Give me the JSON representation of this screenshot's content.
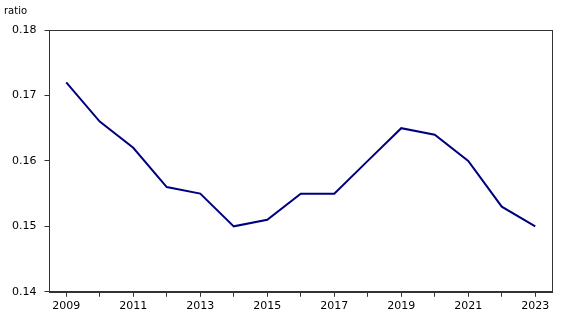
{
  "chart_data": {
    "type": "line",
    "y_label": "ratio",
    "categories": [
      "2009",
      null,
      "2011",
      null,
      "2013",
      null,
      "2015",
      null,
      "2017",
      null,
      "2019",
      null,
      "2021",
      null,
      "2023"
    ],
    "values": [
      0.172,
      0.166,
      0.162,
      0.156,
      0.155,
      0.15,
      0.151,
      0.155,
      0.155,
      0.16,
      0.165,
      0.164,
      0.16,
      0.153,
      0.15
    ],
    "color": "#00007f",
    "ylim": [
      0.14,
      0.18
    ],
    "yticks": [
      0.14,
      0.15,
      0.16,
      0.17,
      0.18
    ],
    "grid": false
  }
}
